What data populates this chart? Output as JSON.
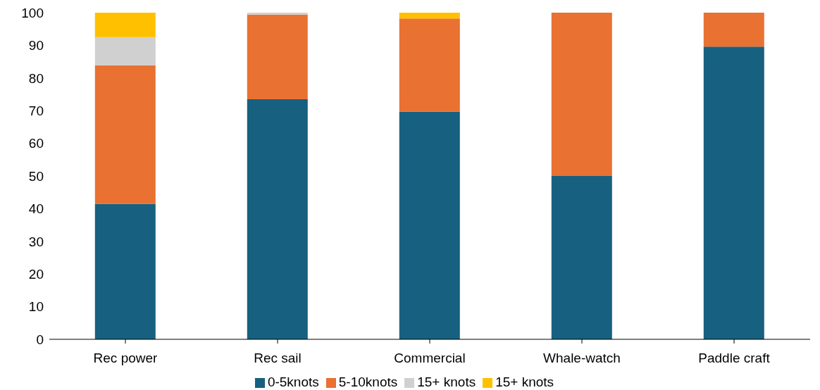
{
  "chart_data": {
    "type": "bar",
    "stacked": true,
    "categories": [
      "Rec power",
      "Rec sail",
      "Commercial",
      "Whale-watch",
      "Paddle craft"
    ],
    "series": [
      {
        "name": "0-5knots",
        "color": "#17607f",
        "values": [
          41.5,
          73.5,
          69.7,
          50,
          89.6
        ]
      },
      {
        "name": "5-10knots",
        "color": "#e97132",
        "values": [
          42.4,
          25.9,
          28.5,
          50,
          10.4
        ]
      },
      {
        "name": "15+ knots",
        "color": "#d0d0d0",
        "values": [
          8.6,
          0.6,
          null,
          null,
          null
        ]
      },
      {
        "name": "15+ knots",
        "color": "#ffc000",
        "values": [
          7.5,
          null,
          1.8,
          null,
          null
        ]
      }
    ],
    "ylim": [
      0,
      100
    ],
    "yticks": [
      0,
      10,
      20,
      30,
      40,
      50,
      60,
      70,
      80,
      90,
      100
    ],
    "grid": false,
    "legend": "bottom"
  }
}
